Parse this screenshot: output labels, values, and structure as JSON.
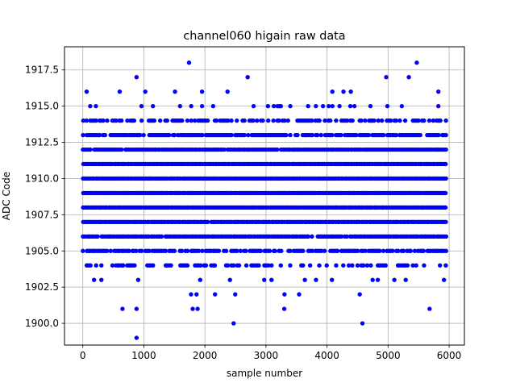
{
  "chart_data": {
    "type": "scatter",
    "title": "channel060 higain raw data",
    "xlabel": "sample number",
    "ylabel": "ADC Code",
    "xlim": [
      -300,
      6250
    ],
    "ylim": [
      1898.5,
      1919.1
    ],
    "x_ticks": [
      0,
      1000,
      2000,
      3000,
      4000,
      5000,
      6000
    ],
    "y_ticks": [
      1900.0,
      1902.5,
      1905.0,
      1907.5,
      1910.0,
      1912.5,
      1915.0,
      1917.5
    ],
    "x_tick_labels": [
      "0",
      "1000",
      "2000",
      "3000",
      "4000",
      "5000",
      "6000"
    ],
    "y_tick_labels": [
      "1900.0",
      "1902.5",
      "1905.0",
      "1907.5",
      "1910.0",
      "1912.5",
      "1915.0",
      "1917.5"
    ],
    "grid": true,
    "marker_color": "#0000ff",
    "series": [
      {
        "x_range": [
          0,
          5950
        ],
        "dense_levels": [
          1904,
          1905,
          1906,
          1907,
          1908,
          1909,
          1910,
          1911,
          1912,
          1913,
          1914
        ],
        "level_density": {
          "1902": 0.03,
          "1903": 0.06,
          "1904": 0.45,
          "1905": 0.75,
          "1906": 0.95,
          "1907": 0.98,
          "1908": 1.0,
          "1909": 1.0,
          "1910": 1.0,
          "1911": 1.0,
          "1912": 0.98,
          "1913": 0.85,
          "1914": 0.55,
          "1915": 0.1,
          "1916": 0.04
        },
        "sparse_points": [
          {
            "x": 880,
            "y": 1899
          },
          {
            "x": 2470,
            "y": 1900
          },
          {
            "x": 4580,
            "y": 1900
          },
          {
            "x": 650,
            "y": 1901
          },
          {
            "x": 880,
            "y": 1901
          },
          {
            "x": 1800,
            "y": 1901
          },
          {
            "x": 1880,
            "y": 1901
          },
          {
            "x": 3300,
            "y": 1901
          },
          {
            "x": 5680,
            "y": 1901
          },
          {
            "x": 880,
            "y": 1917
          },
          {
            "x": 2700,
            "y": 1917
          },
          {
            "x": 4970,
            "y": 1917
          },
          {
            "x": 5340,
            "y": 1917
          },
          {
            "x": 1740,
            "y": 1918
          },
          {
            "x": 5470,
            "y": 1918
          }
        ]
      }
    ]
  }
}
